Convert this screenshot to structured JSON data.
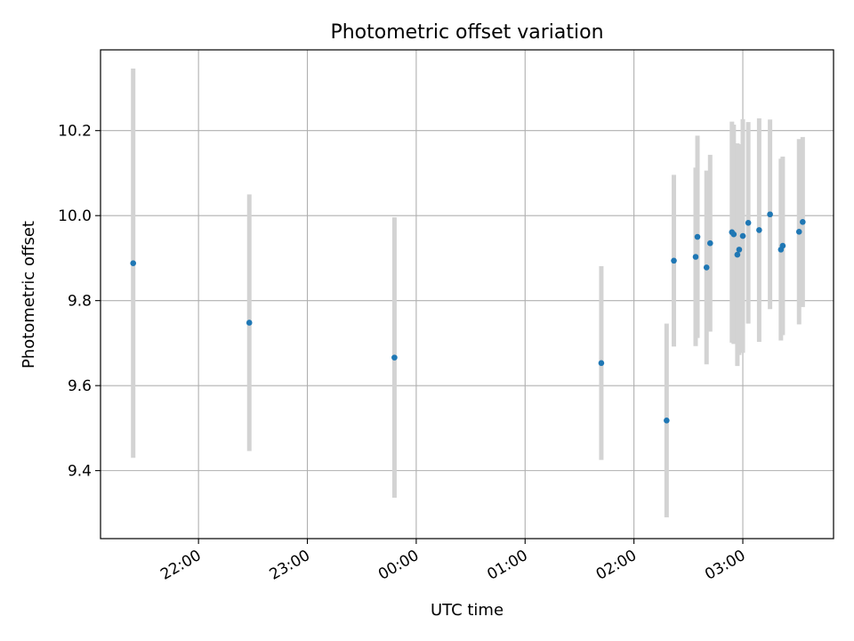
{
  "chart_data": {
    "type": "scatter",
    "title": "Photometric offset variation",
    "xlabel": "UTC time",
    "ylabel": "Photometric offset",
    "x_tick_labels": [
      "22:00",
      "23:00",
      "00:00",
      "01:00",
      "02:00",
      "03:00"
    ],
    "x_tick_times": [
      "22:00",
      "23:00",
      "00:00",
      "01:00",
      "02:00",
      "03:00"
    ],
    "xlim": [
      "21:06",
      "03:50"
    ],
    "y_tick_labels": [
      "9.4",
      "9.6",
      "9.8",
      "10.0",
      "10.2"
    ],
    "y_ticks": [
      9.4,
      9.6,
      9.8,
      10.0,
      10.2
    ],
    "ylim": [
      9.24,
      10.39
    ],
    "grid": true,
    "marker_color": "#1f77b4",
    "errorbar_color": "#d3d3d3",
    "points": [
      {
        "time": "21:24",
        "y": 9.888,
        "err": 0.458
      },
      {
        "time": "22:28",
        "y": 9.748,
        "err": 0.302
      },
      {
        "time": "23:48",
        "y": 9.666,
        "err": 0.33
      },
      {
        "time": "01:42",
        "y": 9.653,
        "err": 0.228
      },
      {
        "time": "02:18",
        "y": 9.518,
        "err": 0.228
      },
      {
        "time": "02:22",
        "y": 9.894,
        "err": 0.202
      },
      {
        "time": "02:34",
        "y": 9.903,
        "err": 0.21
      },
      {
        "time": "02:35",
        "y": 9.95,
        "err": 0.238
      },
      {
        "time": "02:40",
        "y": 9.878,
        "err": 0.228
      },
      {
        "time": "02:42",
        "y": 9.935,
        "err": 0.208
      },
      {
        "time": "02:54",
        "y": 9.961,
        "err": 0.26
      },
      {
        "time": "02:55",
        "y": 9.956,
        "err": 0.258
      },
      {
        "time": "02:57",
        "y": 9.908,
        "err": 0.262
      },
      {
        "time": "02:58",
        "y": 9.92,
        "err": 0.248
      },
      {
        "time": "03:00",
        "y": 9.952,
        "err": 0.275
      },
      {
        "time": "03:03",
        "y": 9.983,
        "err": 0.237
      },
      {
        "time": "03:09",
        "y": 9.966,
        "err": 0.263
      },
      {
        "time": "03:15",
        "y": 10.003,
        "err": 0.223
      },
      {
        "time": "03:21",
        "y": 9.92,
        "err": 0.214
      },
      {
        "time": "03:22",
        "y": 9.929,
        "err": 0.21
      },
      {
        "time": "03:31",
        "y": 9.962,
        "err": 0.218
      },
      {
        "time": "03:33",
        "y": 9.985,
        "err": 0.2
      }
    ]
  }
}
